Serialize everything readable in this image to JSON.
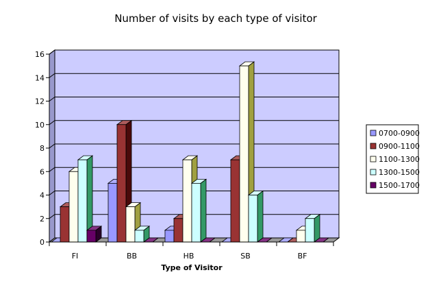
{
  "chart_data": {
    "type": "bar",
    "title": "Number of visits by each type of visitor",
    "xlabel": "Type of Visitor",
    "ylabel": "",
    "ylim": [
      0,
      16
    ],
    "yticks": [
      0,
      2,
      4,
      6,
      8,
      10,
      12,
      14,
      16
    ],
    "grid": true,
    "legend_position": "right",
    "background_color": "#ccccff",
    "categories": [
      "FI",
      "BB",
      "HB",
      "SB",
      "BF"
    ],
    "series": [
      {
        "name": "0700-0900",
        "values": [
          0,
          5,
          1,
          0,
          0
        ],
        "color": "#9999ff"
      },
      {
        "name": "0900-1100",
        "values": [
          3,
          10,
          2,
          7,
          0
        ],
        "color": "#993333"
      },
      {
        "name": "1100-1300",
        "values": [
          6,
          3,
          7,
          15,
          1
        ],
        "color": "#ffffee"
      },
      {
        "name": "1300-1500",
        "values": [
          7,
          1,
          5,
          4,
          2
        ],
        "color": "#ccffff"
      },
      {
        "name": "1500-1700",
        "values": [
          1,
          0,
          0,
          0,
          0
        ],
        "color": "#660066"
      }
    ]
  }
}
